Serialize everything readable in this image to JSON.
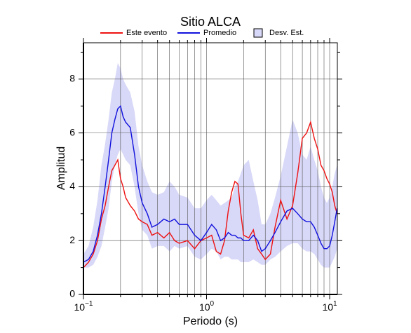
{
  "chart_data": {
    "type": "line",
    "title": "Sitio ALCA",
    "x_label": "Periodo (s)",
    "y_label": "Amplitud",
    "log_x": true,
    "grid": true,
    "xlim": [
      0.1,
      11.55
    ],
    "ylim": [
      0,
      9.35
    ],
    "xticks": [
      {
        "value": 0.1,
        "label": "10",
        "exponent": "−1"
      },
      {
        "value": 1,
        "label": "10",
        "exponent": "0"
      },
      {
        "value": 10,
        "label": "10",
        "exponent": "1"
      }
    ],
    "xminor": [
      0.2,
      0.3,
      0.4,
      0.5,
      0.6,
      0.7,
      0.8,
      0.9,
      2,
      3,
      4,
      5,
      6,
      7,
      8,
      9
    ],
    "yticks": [
      0,
      2,
      4,
      6,
      8
    ],
    "yminor": [
      1,
      3,
      5,
      7,
      9
    ],
    "x": [
      0.1,
      0.11,
      0.12,
      0.13,
      0.14,
      0.15,
      0.16,
      0.17,
      0.18,
      0.19,
      0.2,
      0.21,
      0.22,
      0.24,
      0.26,
      0.28,
      0.3,
      0.33,
      0.36,
      0.4,
      0.45,
      0.5,
      0.55,
      0.6,
      0.7,
      0.8,
      0.9,
      1.0,
      1.1,
      1.2,
      1.3,
      1.4,
      1.5,
      1.6,
      1.7,
      1.8,
      1.9,
      2.0,
      2.2,
      2.4,
      2.6,
      2.8,
      3.0,
      3.3,
      3.6,
      4.0,
      4.5,
      5.0,
      5.5,
      6.0,
      6.5,
      7.0,
      7.5,
      8.0,
      8.5,
      9.0,
      9.5,
      10,
      10.5,
      11,
      11.5
    ],
    "series": [
      {
        "name": "Este evento",
        "color": "#ee1111",
        "values": [
          1.0,
          1.2,
          1.5,
          2.0,
          2.8,
          3.3,
          4.0,
          4.6,
          4.8,
          5.0,
          4.3,
          4.0,
          3.6,
          3.3,
          3.1,
          2.8,
          2.7,
          2.6,
          2.2,
          2.3,
          2.1,
          2.3,
          2.0,
          1.9,
          2.0,
          1.7,
          2.0,
          2.1,
          2.2,
          1.6,
          1.5,
          2.0,
          3.1,
          3.8,
          4.2,
          4.1,
          3.0,
          2.2,
          2.1,
          2.4,
          1.7,
          1.5,
          1.3,
          1.5,
          2.5,
          3.5,
          2.8,
          3.3,
          4.5,
          5.8,
          6.0,
          6.4,
          5.8,
          5.4,
          4.8,
          4.6,
          4.3,
          4.1,
          3.8,
          3.3,
          3.0
        ]
      },
      {
        "name": "Promedio",
        "color": "#1111dd",
        "values": [
          1.2,
          1.3,
          1.6,
          2.2,
          3.0,
          4.0,
          5.0,
          6.0,
          6.5,
          6.9,
          7.0,
          6.6,
          6.4,
          6.2,
          5.2,
          4.0,
          3.4,
          3.0,
          2.5,
          2.6,
          2.8,
          2.7,
          2.8,
          2.6,
          2.6,
          2.2,
          2.0,
          2.3,
          2.6,
          2.4,
          2.0,
          2.1,
          2.3,
          2.2,
          2.2,
          2.1,
          2.1,
          2.0,
          2.0,
          2.2,
          2.0,
          1.6,
          1.7,
          2.0,
          2.3,
          2.7,
          3.1,
          3.2,
          3.0,
          2.8,
          2.7,
          2.7,
          2.5,
          2.2,
          1.9,
          1.7,
          1.7,
          1.8,
          2.2,
          2.7,
          3.2
        ]
      },
      {
        "name": "Desv. Est.",
        "color": "#d8d8f8",
        "upper": [
          1.5,
          1.8,
          2.5,
          3.5,
          4.8,
          5.6,
          6.5,
          7.5,
          8.0,
          8.6,
          8.4,
          8.0,
          7.8,
          7.5,
          6.8,
          5.5,
          4.8,
          4.2,
          3.8,
          3.7,
          3.8,
          4.2,
          4.0,
          3.7,
          3.6,
          3.2,
          3.2,
          3.5,
          3.7,
          3.5,
          3.3,
          3.4,
          3.5,
          3.6,
          4.0,
          4.2,
          4.5,
          4.8,
          5.0,
          4.2,
          3.5,
          2.6,
          2.6,
          3.0,
          3.6,
          4.4,
          5.5,
          6.5,
          6.0,
          5.2,
          5.0,
          5.5,
          5.0,
          4.6,
          4.0,
          3.6,
          3.4,
          3.6,
          4.0,
          4.5,
          4.8
        ],
        "lower": [
          1.0,
          1.0,
          1.1,
          1.4,
          1.8,
          2.5,
          3.2,
          4.2,
          4.8,
          5.2,
          5.4,
          5.2,
          5.0,
          4.8,
          4.0,
          3.0,
          2.4,
          2.2,
          1.7,
          1.8,
          1.8,
          1.6,
          1.8,
          1.7,
          1.8,
          1.4,
          1.3,
          1.5,
          1.7,
          1.6,
          1.3,
          1.4,
          1.4,
          1.3,
          1.3,
          1.3,
          1.2,
          1.2,
          1.2,
          1.3,
          1.2,
          1.1,
          1.1,
          1.3,
          1.4,
          1.6,
          1.8,
          1.9,
          1.9,
          1.7,
          1.6,
          1.6,
          1.5,
          1.3,
          1.1,
          1.0,
          1.0,
          1.0,
          1.2,
          1.4,
          1.7
        ]
      }
    ]
  }
}
